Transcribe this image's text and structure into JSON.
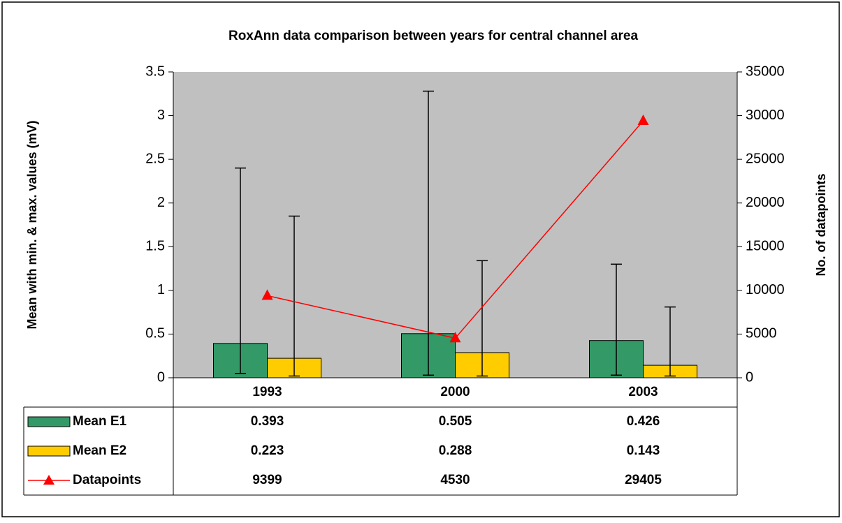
{
  "chart_data": {
    "type": "bar",
    "title": "RoxAnn data comparison between years for central channel area",
    "y_label": "Mean with min. & max. values (mV)",
    "y2_label": "No. of datapoints",
    "categories": [
      "1993",
      "2000",
      "2003"
    ],
    "series": [
      {
        "name": "Mean E1",
        "color": "#339966",
        "values": [
          0.393,
          0.505,
          0.426
        ],
        "min": [
          0.05,
          0.03,
          0.03
        ],
        "max": [
          2.4,
          3.28,
          1.3
        ]
      },
      {
        "name": "Mean E2",
        "color": "#ffcc00",
        "values": [
          0.223,
          0.288,
          0.143
        ],
        "min": [
          0.02,
          0.02,
          0.02
        ],
        "max": [
          1.85,
          1.34,
          0.81
        ]
      },
      {
        "name": "Datapoints",
        "color": "#ff0000",
        "type": "line",
        "axis": "y2",
        "values": [
          9399,
          4530,
          29405
        ]
      }
    ],
    "ylim": [
      0,
      3.5
    ],
    "yticks": [
      0,
      0.5,
      1,
      1.5,
      2,
      2.5,
      3,
      3.5
    ],
    "y2lim": [
      0,
      35000
    ],
    "y2ticks": [
      0,
      5000,
      10000,
      15000,
      20000,
      25000,
      30000,
      35000
    ],
    "plot_background": "#c0c0c0",
    "data_table": true
  }
}
